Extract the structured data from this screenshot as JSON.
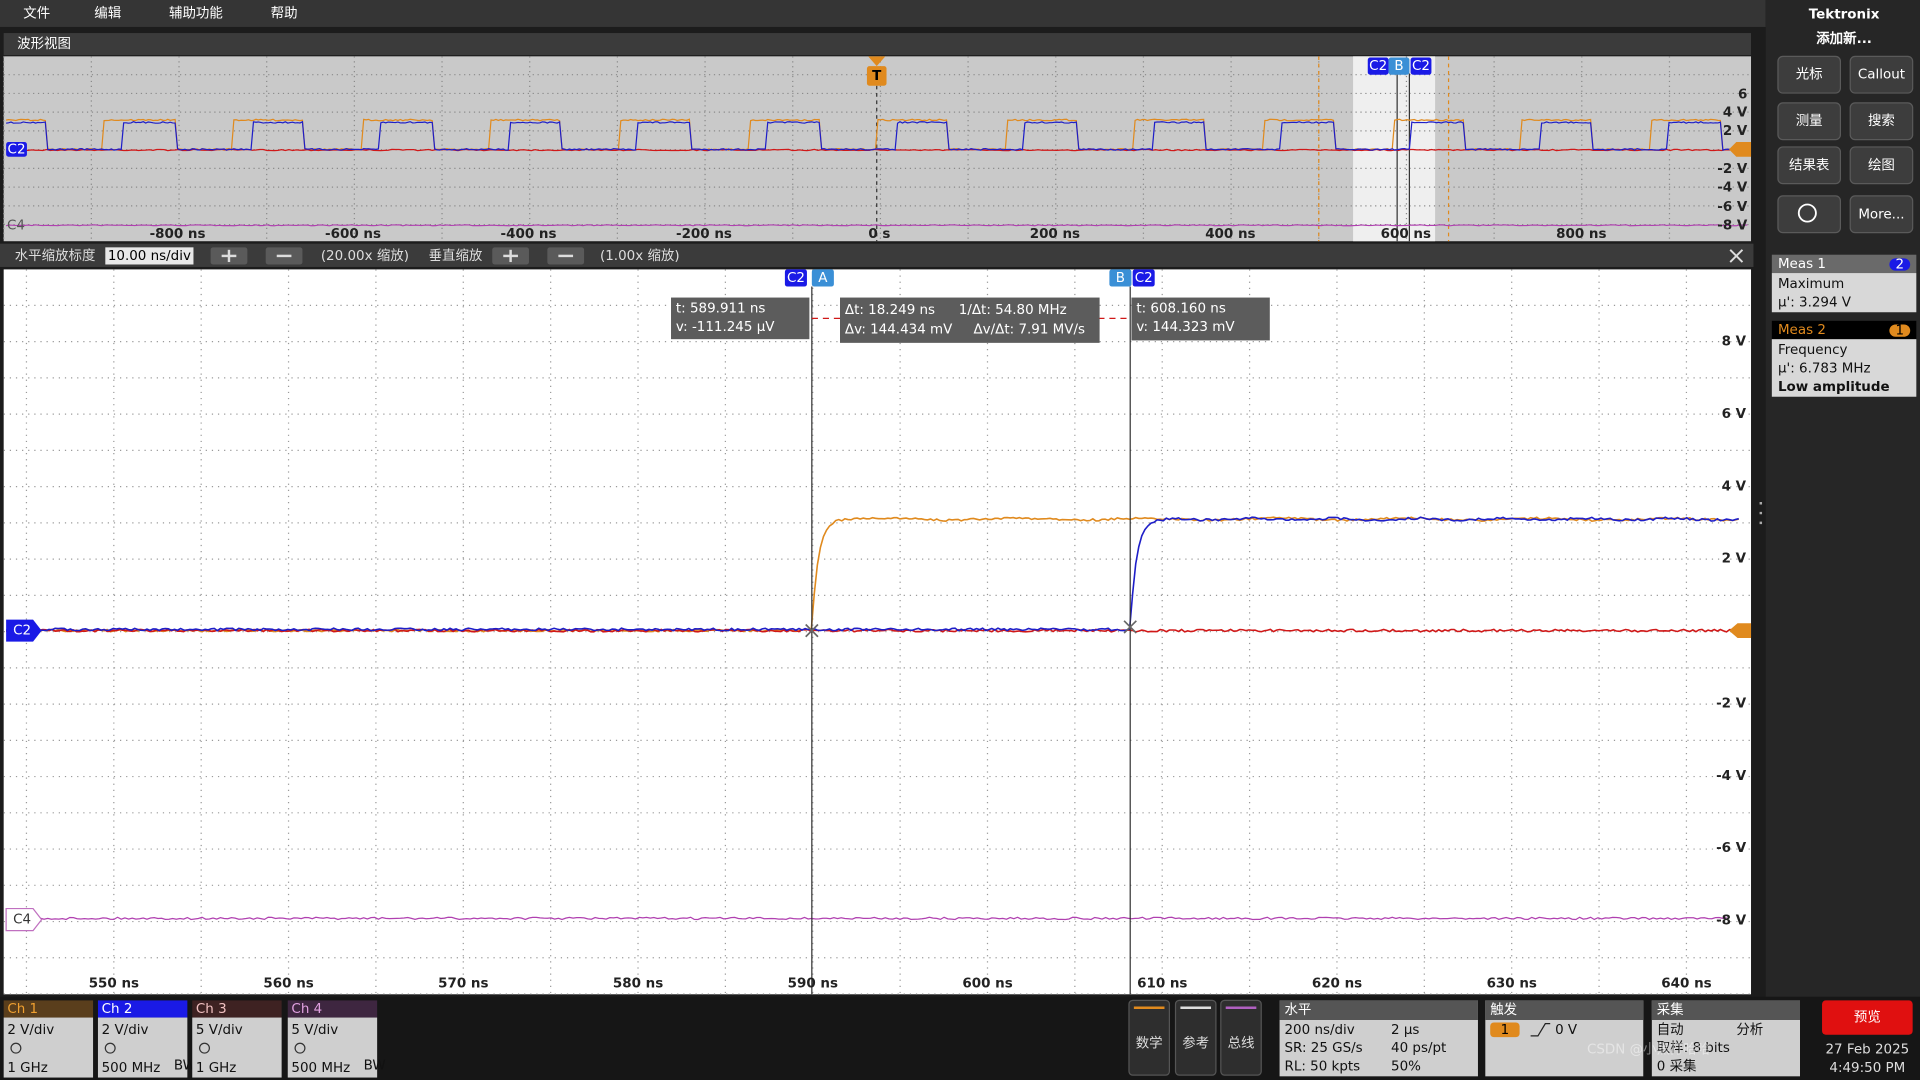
{
  "menu": [
    "文件",
    "编辑",
    "辅助功能",
    "帮助"
  ],
  "brand": "Tektronix",
  "add_new": "添加新...",
  "side_buttons": [
    "光标",
    "Callout",
    "测量",
    "搜索",
    "结果表",
    "绘图",
    "More..."
  ],
  "waveform_view": {
    "title": "波形视图",
    "overview": {
      "x_labels": [
        "-800 ns",
        "-600 ns",
        "-400 ns",
        "-200 ns",
        "0 s",
        "200 ns",
        "400 ns",
        "600 ns",
        "800 ns"
      ],
      "y_labels": [
        "6",
        "4 V",
        "2 V",
        "-2 V",
        "-4 V",
        "-6 V",
        "-8 V"
      ],
      "trigger": "T",
      "cursor_tags": [
        "C2",
        "B",
        "C2"
      ],
      "channel_tags": [
        "C2",
        "C4"
      ]
    },
    "zoom_bar": {
      "h_label": "水平缩放标度",
      "h_value": "10.00 ns/div",
      "h_factor": "(20.00x 缩放)",
      "v_label": "垂直缩放",
      "v_factor": "(1.00x 缩放)"
    },
    "main": {
      "x_labels": [
        "550 ns",
        "560 ns",
        "570 ns",
        "580 ns",
        "590 ns",
        "600 ns",
        "610 ns",
        "620 ns",
        "630 ns",
        "640 ns"
      ],
      "y_labels": [
        "8 V",
        "6 V",
        "4 V",
        "2 V",
        "-2 V",
        "-4 V",
        "-6 V",
        "-8 V"
      ],
      "cursor_tags": [
        "C2",
        "A",
        "B",
        "C2"
      ],
      "channel_tags": [
        "C2",
        "C4"
      ],
      "cursor_a": [
        "t: 589.911 ns",
        "v: -111.245 μV"
      ],
      "delta": [
        "Δt: 18.249 ns",
        "1/Δt: 54.80 MHz",
        "Δv: 144.434 mV",
        "Δv/Δt: 7.91 MV/s"
      ],
      "cursor_b": [
        "t: 608.160 ns",
        "v: 144.323 mV"
      ]
    }
  },
  "measurements": [
    {
      "title": "Meas 1",
      "badge": "2",
      "name": "Maximum",
      "value": "μ': 3.294 V"
    },
    {
      "title": "Meas 2",
      "badge": "1",
      "name": "Frequency",
      "value": "μ': 6.783 MHz",
      "note": "Low amplitude"
    }
  ],
  "channels": [
    {
      "name": "Ch 1",
      "scale": "2 V/div",
      "bandwidth": "1 GHz"
    },
    {
      "name": "Ch 2",
      "scale": "2 V/div",
      "bandwidth": "500 MHz",
      "bw_flag": "BW"
    },
    {
      "name": "Ch 3",
      "scale": "5 V/div",
      "bandwidth": "1 GHz"
    },
    {
      "name": "Ch 4",
      "scale": "5 V/div",
      "bandwidth": "500 MHz",
      "bw_flag": "BW"
    }
  ],
  "tool_buttons": [
    "数学",
    "参考",
    "总线"
  ],
  "horizontal": {
    "title": "水平",
    "rows": [
      [
        "200 ns/div",
        "2 μs"
      ],
      [
        "SR: 25 GS/s",
        "40 ps/pt"
      ],
      [
        "RL: 50 kpts",
        "50%"
      ]
    ]
  },
  "trigger": {
    "title": "触发",
    "source": "1",
    "level": "0 V"
  },
  "acquisition": {
    "title": "采集",
    "mode": "分析",
    "rows": [
      "自动",
      "取样: 8 bits",
      "0 采集"
    ]
  },
  "preview": "预览",
  "date": "27 Feb 2025",
  "time": "4:49:50 PM",
  "watermark": "CSDN @小黑打哈哈"
}
